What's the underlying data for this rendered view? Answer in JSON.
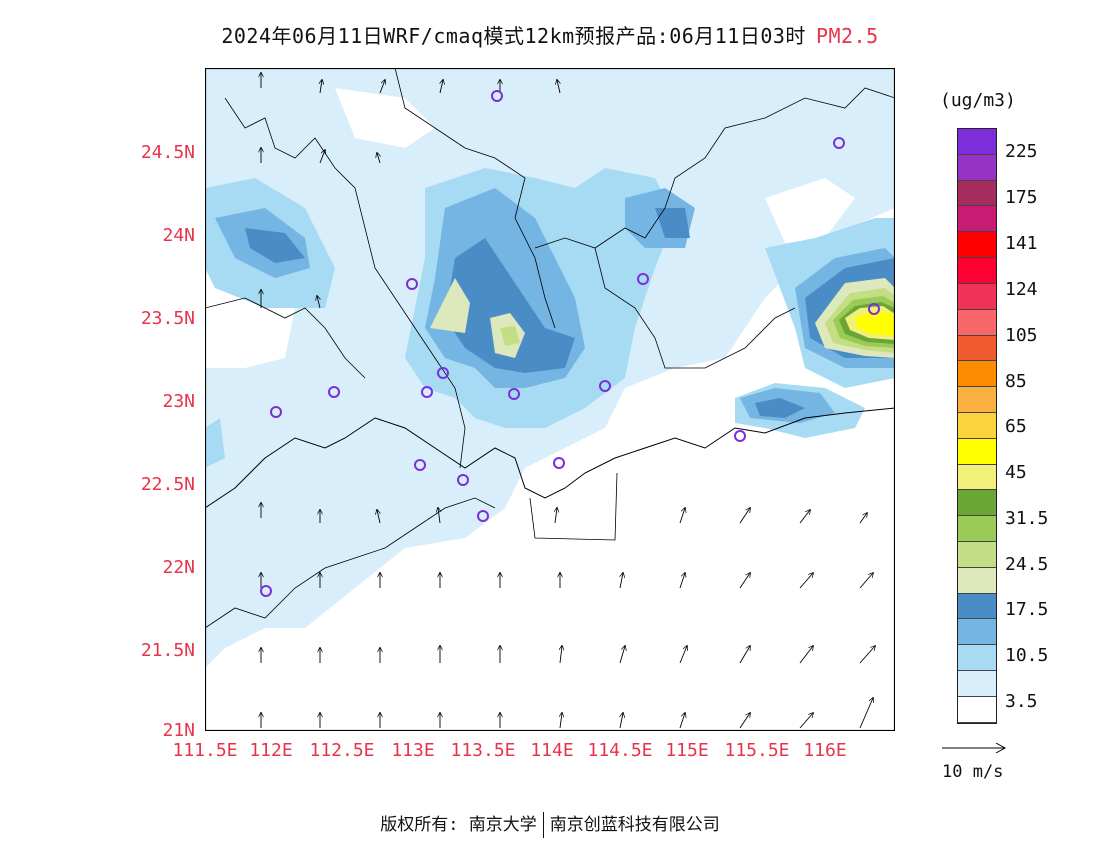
{
  "title": {
    "main": "2024年06月11日WRF/cmaq模式12km预报产品:06月11日03时",
    "pollutant": "PM2.5"
  },
  "axes": {
    "y_ticks": [
      "24.5N",
      "24N",
      "23.5N",
      "23N",
      "22.5N",
      "22N",
      "21.5N",
      "21N"
    ],
    "x_ticks": [
      "111.5E",
      "112E",
      "112.5E",
      "113E",
      "113.5E",
      "114E",
      "114.5E",
      "115E",
      "115.5E",
      "116E"
    ]
  },
  "colorbar": {
    "unit": "(ug/m3)",
    "colors": [
      "#ffffff",
      "#d8eefb",
      "#a7dbf3",
      "#74b5e3",
      "#4a8dc6",
      "#dde9bd",
      "#c4de86",
      "#99cb56",
      "#6aa636",
      "#f0f07a",
      "#ffff00",
      "#fbd33a",
      "#f9b040",
      "#fb8b00",
      "#ef5a2f",
      "#f8666a",
      "#f03256",
      "#ff0033",
      "#ff0000",
      "#c81b74",
      "#a52c5c",
      "#9632c6",
      "#7b2ed9"
    ],
    "labels": [
      "3.5",
      "10.5",
      "17.5",
      "24.5",
      "31.5",
      "45",
      "65",
      "85",
      "105",
      "124",
      "141",
      "175",
      "225"
    ]
  },
  "wind_vector_label": "10 m/s",
  "footer": {
    "copyright_label": "版权所有:",
    "owner1": "南京大学",
    "owner2": "南京创蓝科技有限公司"
  }
}
